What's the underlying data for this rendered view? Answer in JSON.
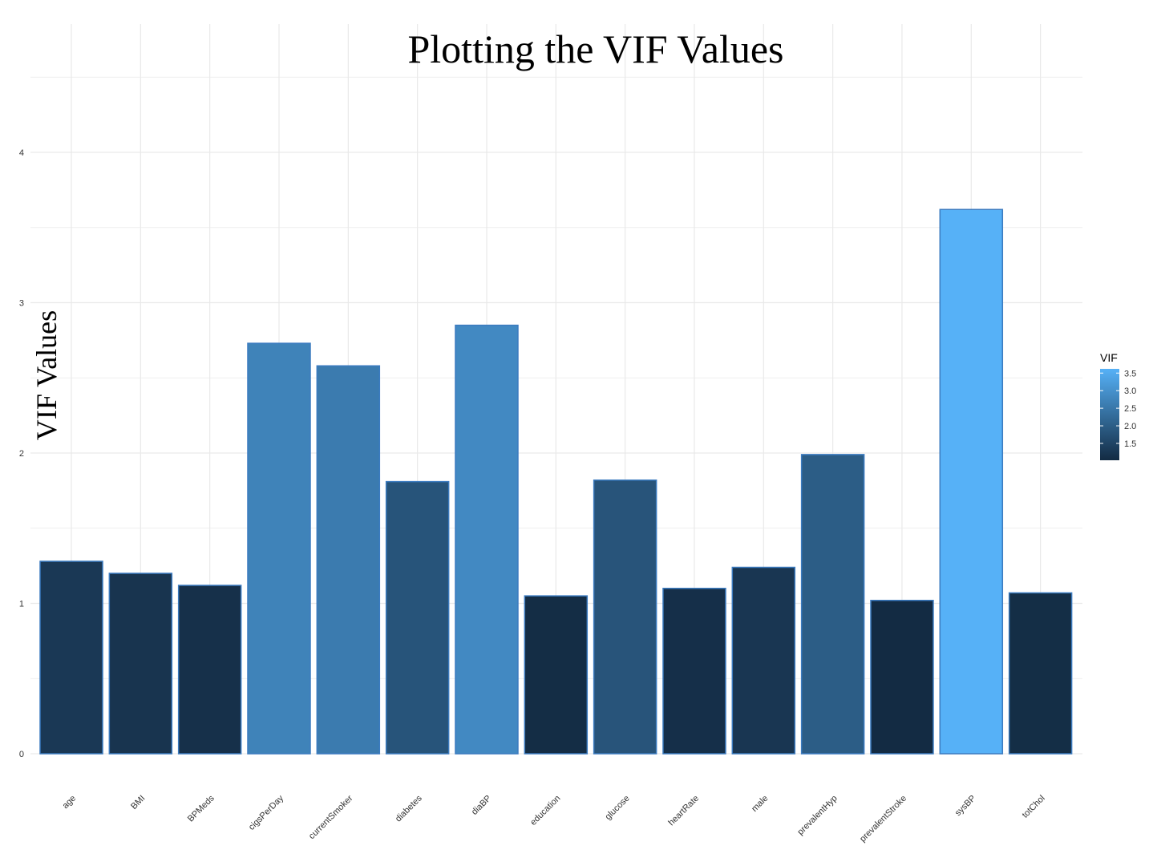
{
  "chart_data": {
    "type": "bar",
    "title": "Plotting the VIF Values",
    "xlabel": "",
    "ylabel": "VIF Values",
    "categories": [
      "age",
      "BMI",
      "BPMeds",
      "cigsPerDay",
      "currentSmoker",
      "diabetes",
      "diaBP",
      "education",
      "glucose",
      "heartRate",
      "male",
      "prevalentHyp",
      "prevalentStroke",
      "sysBP",
      "totChol"
    ],
    "values": [
      1.28,
      1.2,
      1.12,
      2.73,
      2.58,
      1.81,
      2.85,
      1.05,
      1.82,
      1.1,
      1.24,
      1.99,
      1.02,
      3.62,
      1.07
    ],
    "ylim": [
      0,
      4.5
    ],
    "y_ticks": [
      0,
      1,
      2,
      3,
      4
    ],
    "grid": true,
    "legend": {
      "title": "VIF",
      "placement": "right",
      "range": [
        1.02,
        3.62
      ],
      "ticks": [
        1.5,
        2.0,
        2.5,
        3.0,
        3.5
      ],
      "tick_labels": [
        "1.5",
        "2.0",
        "2.5",
        "3.0",
        "3.5"
      ],
      "color_low": "#132B43",
      "color_high": "#56B1F7"
    },
    "bar_outline_color": "#3b7bc0",
    "grid_color": "#e9e9e9"
  }
}
